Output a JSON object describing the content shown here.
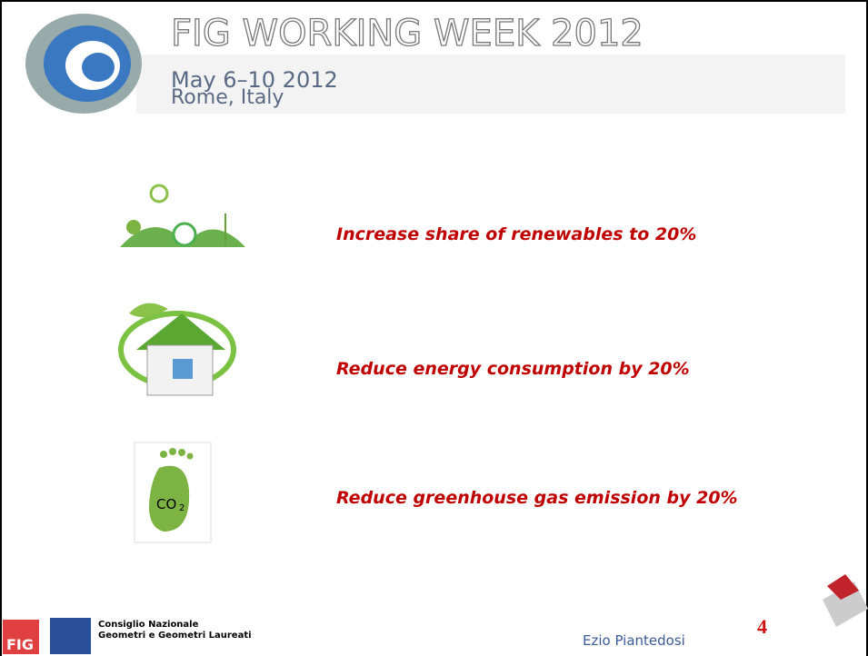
{
  "header": {
    "title": "FIG WORKING WEEK 2012",
    "dates": "May 6–10 2012",
    "location": "Rome, Italy"
  },
  "items": [
    {
      "text": "Increase share of renewables to 20%"
    },
    {
      "text": "Reduce energy consumption by 20%"
    },
    {
      "text": "Reduce greenhouse gas emission by 20%",
      "icon_text": "CO",
      "icon_subscript": "2"
    }
  ],
  "footer": {
    "logo_text": "FIG",
    "org_line1": "Consiglio Nazionale",
    "org_line2": "Geometri e Geometri Laureati",
    "author": "Ezio Piantedosi",
    "page_number": "4"
  }
}
